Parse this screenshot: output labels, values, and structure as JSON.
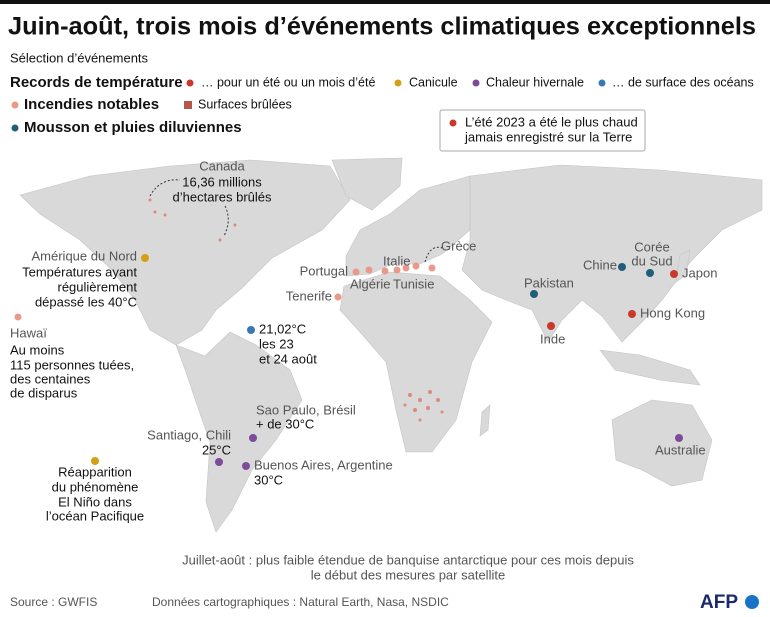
{
  "header": {
    "title": "Juin-août, trois mois d’événements climatiques exceptionnels",
    "subtitle": "Sélection d’événements"
  },
  "legend": {
    "temperature": {
      "title": "Records de température",
      "items": [
        "… pour un été ou un mois d’été",
        "Canicule",
        "Chaleur hivernale",
        "… de surface des océans"
      ]
    },
    "fires": {
      "title": "Incendies notables",
      "area": "Surfaces brûlées"
    },
    "monsoon": {
      "title": "Mousson et pluies diluviennes"
    }
  },
  "callout": {
    "lines": [
      "L’été 2023 a été le plus chaud",
      "jamais enregistré sur la Terre"
    ]
  },
  "places": {
    "canada": {
      "name": "Canada",
      "lines": [
        "16,36 millions",
        "d’hectares brûlés"
      ]
    },
    "north_america": {
      "name": "Amérique du Nord",
      "lines": [
        "Températures ayant",
        "régulièrement",
        "dépassé les 40°C"
      ]
    },
    "hawaii": {
      "name": "Hawaï",
      "lines": [
        "Au moins",
        "115 personnes tuées,",
        "des centaines",
        "de disparus"
      ]
    },
    "atlantic": {
      "lines": [
        "21,02°C",
        "les 23",
        "et 24 août"
      ]
    },
    "sao_paulo": {
      "name": "Sao Paulo, Brésil",
      "lines": [
        "+ de 30°C"
      ]
    },
    "santiago": {
      "name": "Santiago, Chili",
      "lines": [
        "25°C"
      ]
    },
    "buenos_aires": {
      "name": "Buenos Aires, Argentine",
      "lines": [
        "30°C"
      ]
    },
    "el_nino": {
      "lines": [
        "Réapparition",
        "du phénomène",
        "El Niño dans",
        "l’océan Pacifique"
      ]
    },
    "portugal": {
      "name": "Portugal"
    },
    "tenerife": {
      "name": "Tenerife"
    },
    "algeria": {
      "name": "Algérie"
    },
    "italy": {
      "name": "Italie"
    },
    "tunisia": {
      "name": "Tunisie"
    },
    "greece": {
      "name": "Grèce"
    },
    "pakistan": {
      "name": "Pakistan"
    },
    "india": {
      "name": "Inde"
    },
    "china": {
      "name": "Chine"
    },
    "south_korea": {
      "lines": [
        "Corée",
        "du Sud"
      ]
    },
    "japan": {
      "name": "Japon"
    },
    "hong_kong": {
      "name": "Hong Kong"
    },
    "australia": {
      "name": "Australie"
    }
  },
  "note": {
    "lines": [
      "Juillet-août : plus faible étendue de banquise antarctique pour ces mois depuis",
      "le début des mesures par satellite"
    ]
  },
  "footer": {
    "source": "Source : GWFIS",
    "credits": "Données cartographiques : Natural Earth, Nasa, NSDIC",
    "logo": "AFP"
  }
}
